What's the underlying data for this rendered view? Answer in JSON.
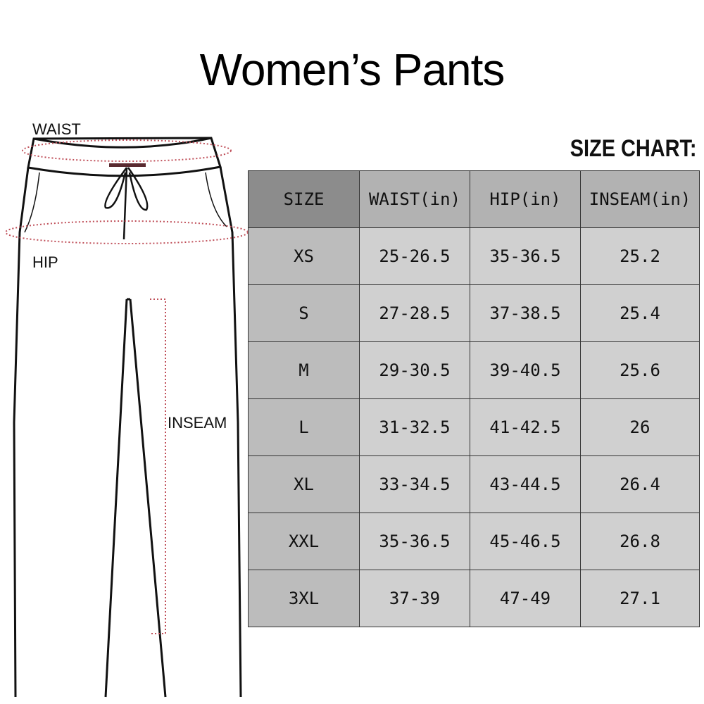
{
  "title": "Women’s Pants",
  "chart_label": "SIZE CHART:",
  "diagram_labels": {
    "waist": "WAIST",
    "hip": "HIP",
    "inseam": "INSEAM"
  },
  "table": {
    "headers": [
      "SIZE",
      "WAIST(in)",
      "HIP(in)",
      "INSEAM(in)"
    ],
    "rows": [
      [
        "XS",
        "25-26.5",
        "35-36.5",
        "25.2"
      ],
      [
        "S",
        "27-28.5",
        "37-38.5",
        "25.4"
      ],
      [
        "M",
        "29-30.5",
        "39-40.5",
        "25.6"
      ],
      [
        "L",
        "31-32.5",
        "41-42.5",
        "26"
      ],
      [
        "XL",
        "33-34.5",
        "43-44.5",
        "26.4"
      ],
      [
        "XXL",
        "35-36.5",
        "45-46.5",
        "26.8"
      ],
      [
        "3XL",
        "37-39",
        "47-49",
        "27.1"
      ]
    ]
  },
  "colors": {
    "measure_line": "#c0505a",
    "header_size": "#8c8c8c",
    "header": "#b2b2b2",
    "size_col": "#bcbcbc",
    "cell": "#d0d0d0"
  }
}
